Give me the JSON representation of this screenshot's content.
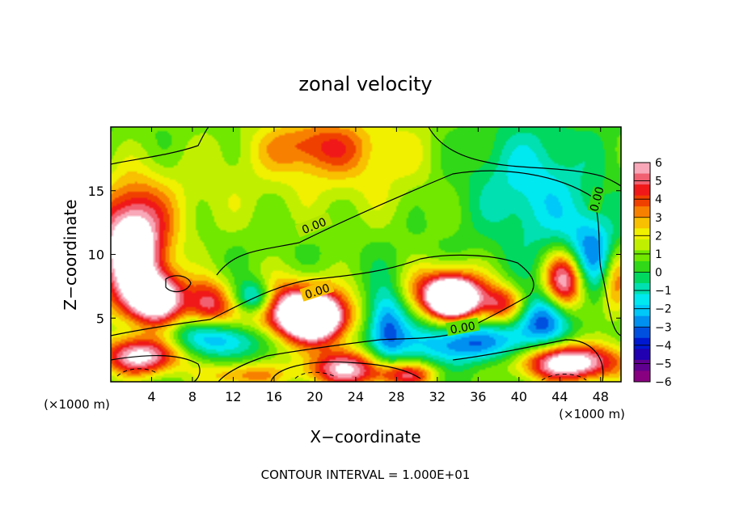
{
  "chart_data": {
    "type": "heatmap",
    "title": "zonal velocity",
    "xlabel": "X−coordinate",
    "ylabel": "Z−coordinate",
    "x_unit_left": "(×1000 m)",
    "x_unit_right": "(×1000 m)",
    "footer": "CONTOUR INTERVAL = 1.000E+01",
    "xlim": [
      0,
      50
    ],
    "ylim": [
      0,
      20
    ],
    "x_ticks": [
      4,
      8,
      12,
      16,
      20,
      24,
      28,
      32,
      36,
      40,
      44,
      48
    ],
    "x_tick_labels": [
      "4",
      "8",
      "12",
      "16",
      "20",
      "24",
      "28",
      "32",
      "36",
      "40",
      "44",
      "48"
    ],
    "y_ticks": [
      5,
      10,
      15
    ],
    "y_tick_labels": [
      "5",
      "10",
      "15"
    ],
    "colorbar": {
      "range": [
        -6,
        6
      ],
      "tick_labels": [
        "6",
        "5",
        "4",
        "3",
        "2",
        "1",
        "0",
        "−1",
        "−2",
        "−3",
        "−4",
        "−5",
        "−6"
      ],
      "colors": [
        "#f8a8b8",
        "#f06070",
        "#f01818",
        "#f04000",
        "#f88000",
        "#f8c000",
        "#f0f000",
        "#c0f000",
        "#70e800",
        "#30d818",
        "#00d860",
        "#00e0b0",
        "#00e8f0",
        "#00c8f8",
        "#0090f0",
        "#0050e0",
        "#0018d0",
        "#2000b0",
        "#600090",
        "#880080"
      ]
    },
    "contour_label": "0.00",
    "contour_label_texts": [
      "0.00",
      "0.00",
      "0.00",
      "0.00"
    ],
    "field_blobs": [
      {
        "x": 25,
        "y": 17.5,
        "rx": 14,
        "ry": 5,
        "v": 1.8
      },
      {
        "x": 20,
        "y": 18.5,
        "rx": 5,
        "ry": 2,
        "v": 2.4
      },
      {
        "x": 7,
        "y": 14,
        "rx": 7,
        "ry": 4,
        "v": 0.9
      },
      {
        "x": 42,
        "y": 15,
        "rx": 5,
        "ry": 5,
        "v": -2.0
      },
      {
        "x": 36,
        "y": 17,
        "rx": 6,
        "ry": 4,
        "v": -1.2
      },
      {
        "x": 47,
        "y": 10,
        "rx": 3,
        "ry": 3,
        "v": -3.5
      },
      {
        "x": 2,
        "y": 10.5,
        "rx": 3.5,
        "ry": 4.5,
        "v": 7.5
      },
      {
        "x": 4.5,
        "y": 6.5,
        "rx": 3,
        "ry": 2,
        "v": 6.5
      },
      {
        "x": 17,
        "y": 5.5,
        "rx": 6,
        "ry": 2.5,
        "v": 5.5
      },
      {
        "x": 20,
        "y": 5,
        "rx": 3,
        "ry": 1.8,
        "v": 7.0
      },
      {
        "x": 33,
        "y": 7,
        "rx": 4,
        "ry": 2,
        "v": 5.5
      },
      {
        "x": 33.5,
        "y": 6.5,
        "rx": 2,
        "ry": 1.3,
        "v": 7.5
      },
      {
        "x": 9.5,
        "y": 6,
        "rx": 2,
        "ry": 2,
        "v": 3.5
      },
      {
        "x": 38.5,
        "y": 6,
        "rx": 2.5,
        "ry": 1.5,
        "v": 4.2
      },
      {
        "x": 44.5,
        "y": 8,
        "rx": 2,
        "ry": 2.5,
        "v": 6.5
      },
      {
        "x": 14,
        "y": 6.5,
        "rx": 2,
        "ry": 1.5,
        "v": -5.0
      },
      {
        "x": 27,
        "y": 4.5,
        "rx": 2,
        "ry": 3,
        "v": -4.0
      },
      {
        "x": 11,
        "y": 3.5,
        "rx": 5,
        "ry": 1.5,
        "v": -3.8
      },
      {
        "x": 35,
        "y": 3,
        "rx": 6,
        "ry": 1.5,
        "v": -3.5
      },
      {
        "x": 42,
        "y": 5,
        "rx": 3,
        "ry": 2,
        "v": -4.0
      },
      {
        "x": 3,
        "y": 2,
        "rx": 4,
        "ry": 1.5,
        "v": 6.0
      },
      {
        "x": 23,
        "y": 1,
        "rx": 4,
        "ry": 1.5,
        "v": 5.5
      },
      {
        "x": 45,
        "y": 1.5,
        "rx": 5,
        "ry": 1.5,
        "v": 7.0
      },
      {
        "x": 13,
        "y": 0.5,
        "rx": 4,
        "ry": 1,
        "v": 3.0
      },
      {
        "x": 29,
        "y": 0.5,
        "rx": 3,
        "ry": 1,
        "v": 4.0
      },
      {
        "x": 49.5,
        "y": 8,
        "rx": 1.5,
        "ry": 3,
        "v": 3.5
      }
    ]
  }
}
